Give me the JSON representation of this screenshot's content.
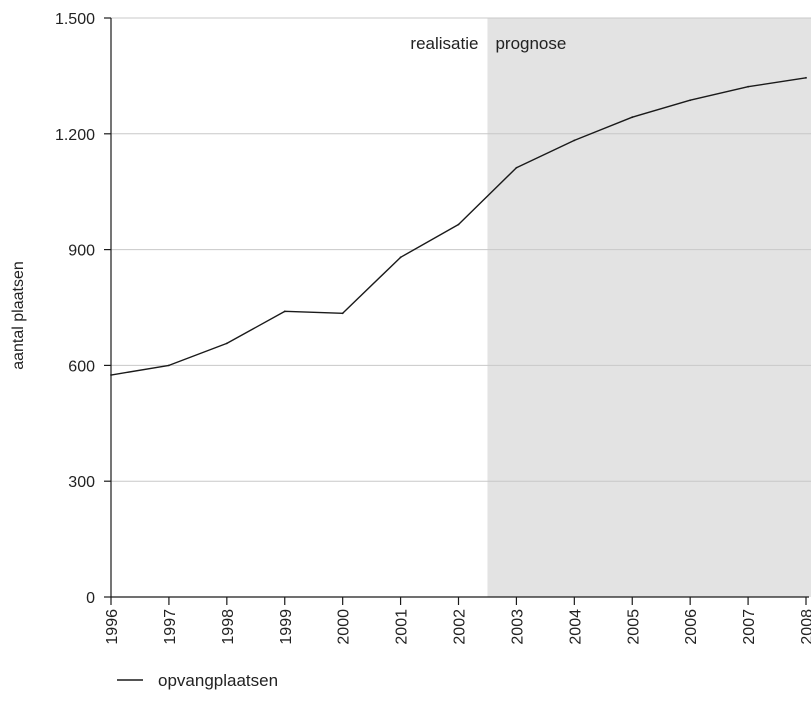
{
  "chart_data": {
    "type": "line",
    "title": "",
    "xlabel": "",
    "ylabel": "aantal plaatsen",
    "x": [
      "1996",
      "1997",
      "1998",
      "1999",
      "2000",
      "2001",
      "2002",
      "2003",
      "2004",
      "2005",
      "2006",
      "2007",
      "2008"
    ],
    "ylim": [
      0,
      1500
    ],
    "yticks": [
      0,
      300,
      600,
      900,
      1200,
      1500
    ],
    "ytick_labels": [
      "0",
      "300",
      "600",
      "900",
      "1.200",
      "1.500"
    ],
    "grid": true,
    "series": [
      {
        "name": "opvangplaatsen",
        "color": "#1a1a1a",
        "values": [
          575,
          600,
          657,
          740,
          735,
          880,
          965,
          1112,
          1183,
          1243,
          1287,
          1322,
          1345
        ]
      }
    ],
    "regions": [
      {
        "label": "realisatie",
        "from": "1996",
        "to": "2002"
      },
      {
        "label": "prognose",
        "from": "2002.5",
        "to": "2008",
        "shade": "#e3e3e3"
      }
    ],
    "legend": {
      "placement": "bottom-left"
    }
  }
}
